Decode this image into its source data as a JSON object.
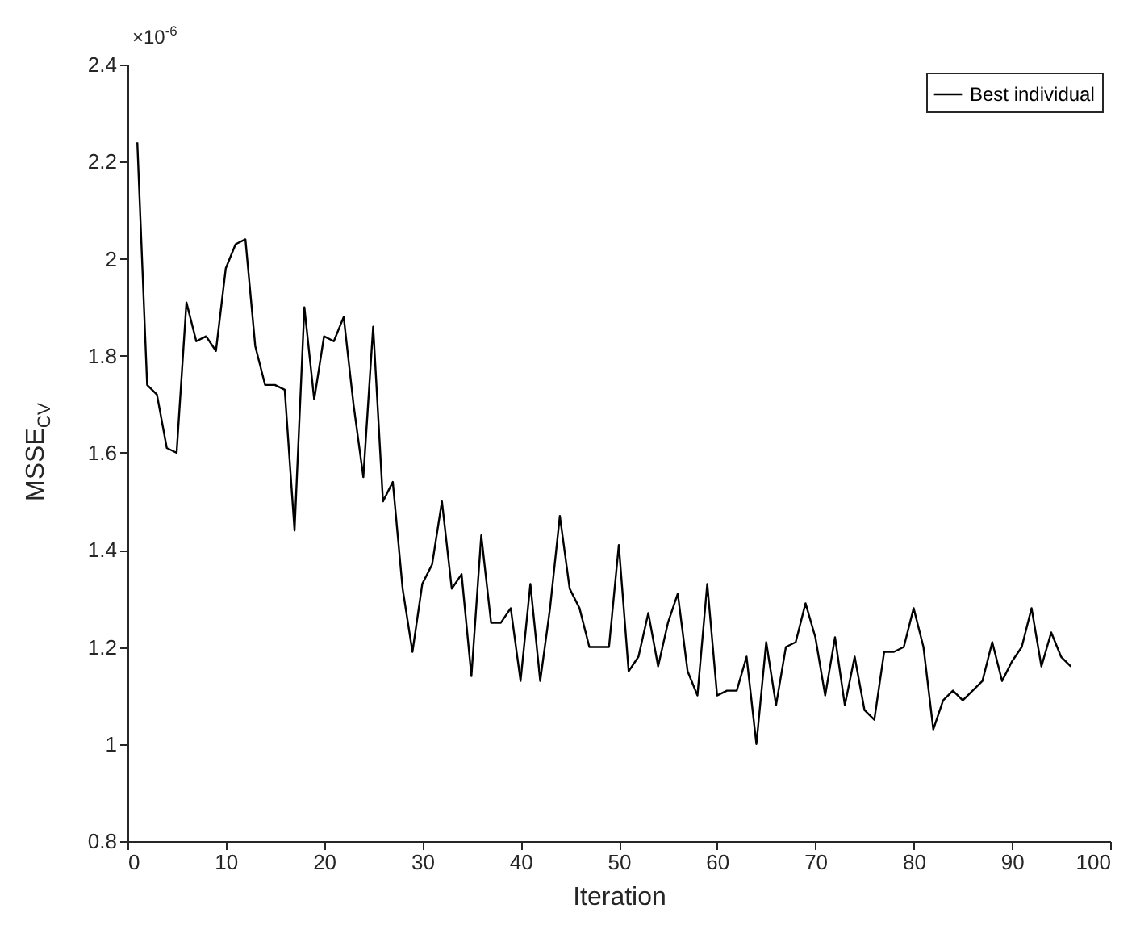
{
  "chart_data": {
    "type": "line",
    "xlabel": "Iteration",
    "ylabel": "MSSE$_{CV}$",
    "annotations": [
      "×10$^{-6}$"
    ],
    "x": [
      1,
      2,
      3,
      4,
      5,
      6,
      7,
      8,
      9,
      10,
      11,
      12,
      13,
      14,
      15,
      16,
      17,
      18,
      19,
      20,
      21,
      22,
      23,
      24,
      25,
      26,
      27,
      28,
      29,
      30,
      31,
      32,
      33,
      34,
      35,
      36,
      37,
      38,
      39,
      40,
      41,
      42,
      43,
      44,
      45,
      46,
      47,
      48,
      49,
      50,
      51,
      52,
      53,
      54,
      55,
      56,
      57,
      58,
      59,
      60,
      61,
      62,
      63,
      64,
      65,
      66,
      67,
      68,
      69,
      70,
      71,
      72,
      73,
      74,
      75,
      76,
      77,
      78,
      79,
      80,
      81,
      82,
      83,
      84,
      85,
      86,
      87,
      88,
      89,
      90,
      91,
      92,
      93,
      94,
      95,
      96
    ],
    "series": [
      {
        "name": "Best individual",
        "color": "#000000",
        "values": [
          2.24,
          1.74,
          1.72,
          1.61,
          1.6,
          1.91,
          1.83,
          1.84,
          1.81,
          1.98,
          2.03,
          2.04,
          1.82,
          1.74,
          1.74,
          1.73,
          1.44,
          1.9,
          1.71,
          1.84,
          1.83,
          1.88,
          1.7,
          1.55,
          1.86,
          1.5,
          1.54,
          1.32,
          1.19,
          1.33,
          1.37,
          1.5,
          1.32,
          1.35,
          1.14,
          1.43,
          1.25,
          1.25,
          1.28,
          1.13,
          1.33,
          1.13,
          1.28,
          1.47,
          1.32,
          1.28,
          1.2,
          1.2,
          1.2,
          1.41,
          1.15,
          1.18,
          1.27,
          1.16,
          1.25,
          1.31,
          1.15,
          1.1,
          1.33,
          1.1,
          1.11,
          1.11,
          1.18,
          1.0,
          1.21,
          1.08,
          1.2,
          1.21,
          1.29,
          1.22,
          1.1,
          1.22,
          1.08,
          1.18,
          1.07,
          1.05,
          1.19,
          1.19,
          1.2,
          1.28,
          1.2,
          1.03,
          1.09,
          1.11,
          1.09,
          1.11,
          1.13,
          1.21,
          1.13,
          1.17,
          1.2,
          1.28,
          1.16,
          1.23,
          1.18,
          1.16
        ]
      }
    ],
    "xlim": [
      0,
      100
    ],
    "xticks": [
      0,
      10,
      20,
      30,
      40,
      50,
      60,
      70,
      80,
      90,
      100
    ],
    "ylim": [
      0.8,
      2.4
    ],
    "yticks": [
      0.8,
      1,
      1.2,
      1.4,
      1.6,
      1.8,
      2,
      2.2,
      2.4
    ],
    "legend": "top right",
    "grid": false,
    "marker": "none",
    "line_style": "solid"
  }
}
